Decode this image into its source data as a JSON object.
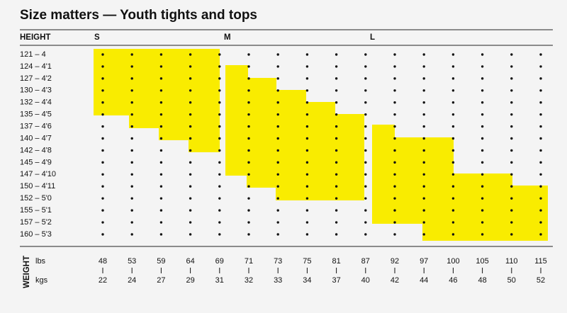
{
  "title": "Size matters — Youth tights and tops",
  "header": {
    "height_label": "HEIGHT",
    "sizes": [
      "S",
      "M",
      "L"
    ]
  },
  "heights": [
    "121 – 4",
    "124 – 4'1",
    "127 – 4'2",
    "130 – 4'3",
    "132 – 4'4",
    "135 – 4'5",
    "137 – 4'6",
    "140 – 4'7",
    "142 – 4'8",
    "145 – 4'9",
    "147 – 4'10",
    "150 – 4'11",
    "152 – 5'0",
    "155 – 5'1",
    "157 – 5'2",
    "160 – 5'3"
  ],
  "weight": {
    "label": "WEIGHT",
    "lbs_label": "lbs",
    "kgs_label": "kgs",
    "lbs": [
      "48",
      "53",
      "59",
      "64",
      "69",
      "71",
      "73",
      "75",
      "81",
      "87",
      "92",
      "97",
      "100",
      "105",
      "110",
      "115"
    ],
    "kgs": [
      "22",
      "24",
      "27",
      "29",
      "31",
      "32",
      "33",
      "34",
      "37",
      "40",
      "42",
      "44",
      "46",
      "48",
      "50",
      "52"
    ]
  }
}
